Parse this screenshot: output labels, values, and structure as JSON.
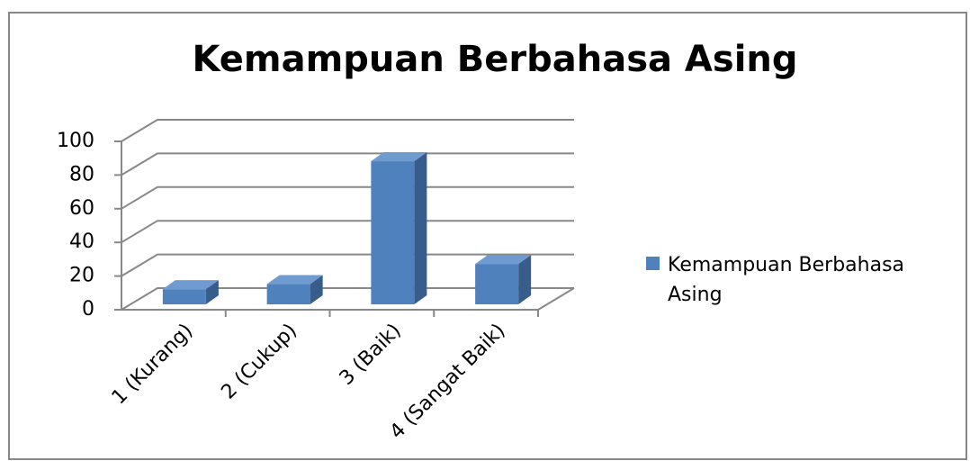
{
  "chart_data": {
    "type": "bar3d",
    "title": "Kemampuan Berbahasa Asing",
    "categories": [
      "1 (Kurang)",
      "2 (Cukup)",
      "3 (Baik)",
      "4 (Sangat Baik)"
    ],
    "series": [
      {
        "name": "Kemampuan Berbahasa Asing",
        "color": "#4f81bd",
        "values": [
          9,
          12,
          85,
          24
        ]
      }
    ],
    "ylim": [
      0,
      100
    ],
    "yticks": [
      0,
      20,
      40,
      60,
      80,
      100
    ],
    "grid": true,
    "legend": "right"
  }
}
